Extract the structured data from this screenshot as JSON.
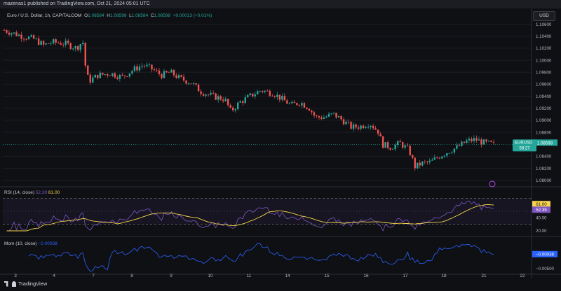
{
  "header": {
    "publisher_line": "mazenas1 published on TradingView.com, Oct 21, 2024 05:01 UTC"
  },
  "legend": {
    "symbol": "Euro / U.S. Dollar, 1h, CAPITALCOM",
    "open_label": "O",
    "open": "1.08584",
    "high_label": "H",
    "high": "1.08599",
    "low_label": "L",
    "low": "1.08584",
    "close_label": "C",
    "close": "1.08598",
    "change": "+0.00013 (+0.01%)"
  },
  "price_scale": {
    "currency": "USD",
    "ticks": [
      "1.10600",
      "1.10400",
      "1.10200",
      "1.10000",
      "1.09800",
      "1.09600",
      "1.09400",
      "1.09200",
      "1.09000",
      "1.08800",
      "1.08400",
      "1.08200",
      "1.08000"
    ],
    "last_label_symbol": "EURUSD",
    "last_label_price": "1.08598",
    "last_label_countdown": "58:27"
  },
  "rsi_pane": {
    "legend": "RSI (14, close)",
    "rsi_value": "52.39",
    "ma_value": "61.00",
    "scale_ticks": [
      "40.00",
      "20.00"
    ],
    "label_ma": "61.00",
    "label_rsi": "52.39"
  },
  "mom_pane": {
    "legend": "Mom (10, close)",
    "value": "−0.00038",
    "scale_tick": "−0.00500",
    "label_value": "−0.00038"
  },
  "time_axis": {
    "ticks": [
      "3",
      "4",
      "7",
      "8",
      "9",
      "10",
      "11",
      "14",
      "15",
      "16",
      "17",
      "18",
      "21",
      "22"
    ]
  },
  "footer": {
    "brand": "TradingView"
  },
  "colors": {
    "background": "#0f1014",
    "up": "#26a69a",
    "down": "#ef5350",
    "rsi": "#7e57c2",
    "rsi_ma": "#f7d44c",
    "momentum": "#2962ff",
    "last_price": "#26a69a"
  },
  "chart_data": {
    "type": "candlestick",
    "title": "Euro / U.S. Dollar, 1h, CAPITALCOM",
    "y_range": [
      1.0795,
      1.107
    ],
    "x_labels": [
      "3",
      "4",
      "7",
      "8",
      "9",
      "10",
      "11",
      "14",
      "15",
      "16",
      "17",
      "18",
      "21",
      "22"
    ],
    "close_path_approx": [
      [
        0,
        1.105
      ],
      [
        6,
        1.1045
      ],
      [
        12,
        1.104
      ],
      [
        20,
        1.1035
      ],
      [
        26,
        1.1025
      ],
      [
        32,
        1.103
      ],
      [
        40,
        1.1028
      ],
      [
        48,
        1.102
      ],
      [
        52,
        1.1032
      ],
      [
        54,
        1.0985
      ],
      [
        56,
        1.0965
      ],
      [
        62,
        1.0975
      ],
      [
        70,
        1.0978
      ],
      [
        78,
        1.0972
      ],
      [
        86,
        1.0985
      ],
      [
        92,
        1.0992
      ],
      [
        98,
        1.0985
      ],
      [
        104,
        1.0975
      ],
      [
        110,
        1.098
      ],
      [
        116,
        1.097
      ],
      [
        124,
        1.0962
      ],
      [
        130,
        1.0948
      ],
      [
        138,
        1.094
      ],
      [
        146,
        1.0935
      ],
      [
        150,
        1.0915
      ],
      [
        156,
        1.093
      ],
      [
        164,
        1.0942
      ],
      [
        170,
        1.095
      ],
      [
        178,
        1.0945
      ],
      [
        184,
        1.0935
      ],
      [
        190,
        1.0925
      ],
      [
        196,
        1.093
      ],
      [
        202,
        1.092
      ],
      [
        206,
        1.0905
      ],
      [
        212,
        1.0905
      ],
      [
        218,
        1.091
      ],
      [
        224,
        1.09
      ],
      [
        230,
        1.0888
      ],
      [
        236,
        1.089
      ],
      [
        242,
        1.0895
      ],
      [
        248,
        1.088
      ],
      [
        250,
        1.086
      ],
      [
        256,
        1.0855
      ],
      [
        262,
        1.0862
      ],
      [
        268,
        1.085
      ],
      [
        272,
        1.0822
      ],
      [
        276,
        1.0828
      ],
      [
        282,
        1.083
      ],
      [
        288,
        1.084
      ],
      [
        294,
        1.0848
      ],
      [
        300,
        1.0855
      ],
      [
        306,
        1.0865
      ],
      [
        312,
        1.0868
      ],
      [
        318,
        1.0862
      ],
      [
        324,
        1.086
      ]
    ],
    "last_price": 1.08598,
    "rsi": {
      "period": 14,
      "last": 52.39,
      "ma_last": 61.0,
      "levels": [
        70,
        30
      ]
    },
    "momentum": {
      "period": 10,
      "last": -0.00038
    }
  }
}
